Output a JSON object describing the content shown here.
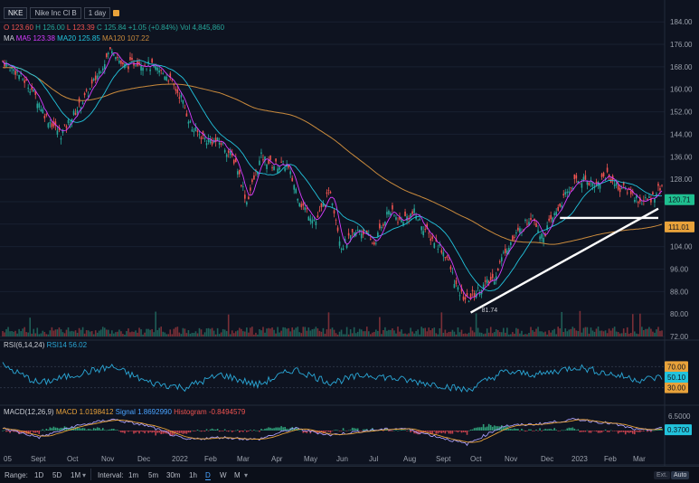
{
  "legend": {
    "symbol": "NKE",
    "name": "Nike Inc Cl B",
    "timeframe": "1 day",
    "open_label": "O",
    "open": "123.60",
    "high_label": "H",
    "high": "126.00",
    "low_label": "L",
    "low": "123.39",
    "close_label": "C",
    "close": "125.84",
    "change": "+1.05 (+0.84%)",
    "vol_label": "Vol",
    "vol": "4,845,860",
    "ma_label": "MA",
    "ma5": "MA5 123.38",
    "ma20": "MA20 125.85",
    "ma120": "MA120 107.22",
    "rsi": "RSI(6,14,24)",
    "rsi14": "RSI14 56.02",
    "macd": "MACD(12,26,9)",
    "macd_val": "MACD 1.0198412",
    "signal": "Signal 1.8692990",
    "hist": "Histogram -0.8494579"
  },
  "toolbar": {
    "range_label": "Range:",
    "ranges": [
      "1D",
      "5D",
      "1M"
    ],
    "interval_label": "Interval:",
    "intervals": [
      "1m",
      "5m",
      "30m",
      "1h",
      "D",
      "W",
      "M"
    ],
    "selected_interval": "D",
    "ext": "Ext.",
    "auto": "Auto"
  },
  "chart_data": {
    "type": "candlestick",
    "symbol": "NKE",
    "x_tick_labels": [
      "05",
      "Sept",
      "Oct",
      "Nov",
      "Dec",
      "2022",
      "Feb",
      "Mar",
      "Apr",
      "May",
      "Jun",
      "Jul",
      "Aug",
      "Sept",
      "Oct",
      "Nov",
      "Dec",
      "2023",
      "Feb",
      "Mar"
    ],
    "y_tick_labels": [
      "184.00",
      "176.00",
      "168.00",
      "160.00",
      "152.00",
      "144.00",
      "136.00",
      "128.00",
      "120.00",
      "112.00",
      "104.00",
      "96.00",
      "88.00",
      "80.00",
      "72.00"
    ],
    "ylim": [
      72,
      186
    ],
    "price_anchors": [
      {
        "t": 0,
        "p": 170
      },
      {
        "t": 8,
        "p": 166
      },
      {
        "t": 16,
        "p": 160
      },
      {
        "t": 24,
        "p": 150
      },
      {
        "t": 32,
        "p": 144
      },
      {
        "t": 40,
        "p": 152
      },
      {
        "t": 48,
        "p": 160
      },
      {
        "t": 56,
        "p": 170
      },
      {
        "t": 60,
        "p": 175
      },
      {
        "t": 66,
        "p": 168
      },
      {
        "t": 74,
        "p": 170
      },
      {
        "t": 82,
        "p": 168
      },
      {
        "t": 90,
        "p": 165
      },
      {
        "t": 98,
        "p": 157
      },
      {
        "t": 104,
        "p": 146
      },
      {
        "t": 112,
        "p": 142
      },
      {
        "t": 120,
        "p": 141
      },
      {
        "t": 128,
        "p": 134
      },
      {
        "t": 134,
        "p": 120
      },
      {
        "t": 142,
        "p": 136
      },
      {
        "t": 148,
        "p": 133
      },
      {
        "t": 156,
        "p": 133
      },
      {
        "t": 164,
        "p": 119
      },
      {
        "t": 172,
        "p": 113
      },
      {
        "t": 180,
        "p": 124
      },
      {
        "t": 186,
        "p": 104
      },
      {
        "t": 196,
        "p": 110
      },
      {
        "t": 204,
        "p": 105
      },
      {
        "t": 212,
        "p": 117
      },
      {
        "t": 218,
        "p": 113
      },
      {
        "t": 226,
        "p": 116
      },
      {
        "t": 234,
        "p": 108
      },
      {
        "t": 240,
        "p": 104
      },
      {
        "t": 244,
        "p": 100
      },
      {
        "t": 250,
        "p": 88
      },
      {
        "t": 255,
        "p": 85
      },
      {
        "t": 262,
        "p": 89
      },
      {
        "t": 270,
        "p": 93
      },
      {
        "t": 276,
        "p": 103
      },
      {
        "t": 282,
        "p": 108
      },
      {
        "t": 288,
        "p": 113
      },
      {
        "t": 291,
        "p": 116
      },
      {
        "t": 296,
        "p": 107
      },
      {
        "t": 302,
        "p": 114
      },
      {
        "t": 308,
        "p": 121
      },
      {
        "t": 314,
        "p": 127
      },
      {
        "t": 320,
        "p": 128
      },
      {
        "t": 326,
        "p": 126
      },
      {
        "t": 332,
        "p": 130
      },
      {
        "t": 338,
        "p": 125
      },
      {
        "t": 344,
        "p": 124
      },
      {
        "t": 350,
        "p": 120
      },
      {
        "t": 356,
        "p": 121
      },
      {
        "t": 362,
        "p": 126
      }
    ],
    "annotations": [
      {
        "type": "trendline",
        "from": {
          "t": 257,
          "p": 80.5
        },
        "to": {
          "t": 360,
          "p": 117.5
        }
      },
      {
        "type": "horizontal",
        "from": {
          "t": 306,
          "p": 114.2
        },
        "to": {
          "t": 360,
          "p": 114.2
        }
      },
      {
        "type": "label",
        "text": "81.74",
        "t": 262,
        "p": 81.74
      }
    ],
    "price_labels": [
      {
        "text": "120.71",
        "value": 120.71,
        "color": "#1fbf8f"
      },
      {
        "text": "111.01",
        "value": 111.01,
        "color": "#e8a23a"
      }
    ],
    "rsi": {
      "levels": [
        "70.00",
        "30.00"
      ],
      "last": "50.10",
      "range": [
        0,
        100
      ],
      "anchors": [
        {
          "t": 0,
          "v": 72
        },
        {
          "t": 20,
          "v": 38
        },
        {
          "t": 40,
          "v": 55
        },
        {
          "t": 60,
          "v": 70
        },
        {
          "t": 80,
          "v": 40
        },
        {
          "t": 100,
          "v": 30
        },
        {
          "t": 120,
          "v": 55
        },
        {
          "t": 140,
          "v": 35
        },
        {
          "t": 160,
          "v": 65
        },
        {
          "t": 180,
          "v": 40
        },
        {
          "t": 200,
          "v": 55
        },
        {
          "t": 220,
          "v": 45
        },
        {
          "t": 240,
          "v": 35
        },
        {
          "t": 255,
          "v": 25
        },
        {
          "t": 275,
          "v": 60
        },
        {
          "t": 295,
          "v": 55
        },
        {
          "t": 315,
          "v": 70
        },
        {
          "t": 335,
          "v": 55
        },
        {
          "t": 350,
          "v": 45
        },
        {
          "t": 362,
          "v": 50
        }
      ]
    },
    "macd": {
      "levels": [
        "6.5000"
      ],
      "last": "0.3700",
      "range": [
        -8,
        8
      ],
      "anchors": [
        {
          "t": 0,
          "v": 1
        },
        {
          "t": 20,
          "v": -3
        },
        {
          "t": 40,
          "v": 2
        },
        {
          "t": 60,
          "v": 5
        },
        {
          "t": 80,
          "v": 2
        },
        {
          "t": 100,
          "v": -4
        },
        {
          "t": 120,
          "v": -3
        },
        {
          "t": 140,
          "v": -4
        },
        {
          "t": 160,
          "v": 1
        },
        {
          "t": 180,
          "v": -2
        },
        {
          "t": 200,
          "v": 0
        },
        {
          "t": 220,
          "v": 1
        },
        {
          "t": 240,
          "v": -3
        },
        {
          "t": 255,
          "v": -6
        },
        {
          "t": 275,
          "v": 2
        },
        {
          "t": 295,
          "v": 3
        },
        {
          "t": 315,
          "v": 5
        },
        {
          "t": 335,
          "v": 3
        },
        {
          "t": 350,
          "v": 0
        },
        {
          "t": 362,
          "v": 1
        }
      ]
    },
    "colors": {
      "up": "#26a69a",
      "down": "#ef5350",
      "ma5": "#d63cff",
      "ma20": "#22c3dc",
      "ma120": "#c98a3c",
      "rsi": "#2aa7d6",
      "macd": "#a79cf7",
      "signal": "#e8a23a"
    }
  }
}
